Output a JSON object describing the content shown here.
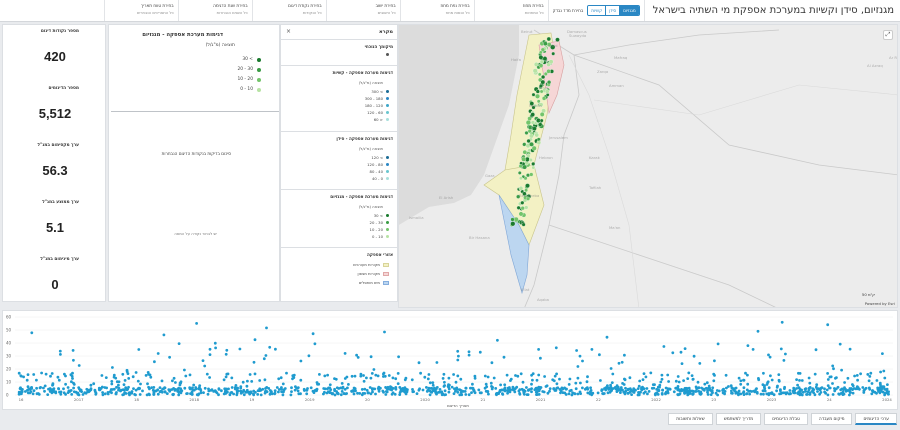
{
  "header": {
    "title": "מגנזיום, סידן וקשיות במערכת אספקת מי השתיה בישראל",
    "metric_label": "בחירת מדד נבדק",
    "metric_options": [
      "מגנזיום",
      "סידן",
      "קשיות"
    ],
    "metric_selected": "מגנזיום",
    "filters": [
      {
        "title": "בחירת מחוז",
        "sub": "כל המחוזות"
      },
      {
        "title": "בחירת נפת מחוז",
        "sub": "כל הנפות מחוז"
      },
      {
        "title": "בחירת ישוב",
        "sub": "כל הישובים"
      },
      {
        "title": "בחירת נקודת דיגום",
        "sub": "כל הנקודות"
      },
      {
        "title": "בחירת שנת הדגימה",
        "sub": "כל השנים הנבחרות"
      },
      {
        "title": "בחירת טווח תאריך",
        "sub": "כל התאריכים הנבחרים"
      }
    ]
  },
  "kpis": [
    {
      "label": "מספר נקודות דיגום",
      "value": "420"
    },
    {
      "label": "מספר הדיגומים",
      "value": "5,512"
    },
    {
      "label": "ערך מקסימום במג\"ל",
      "value": "56.3"
    },
    {
      "label": "ערך ממוצע במג\"ל",
      "value": "5.1"
    },
    {
      "label": "ערך מינימום במג\"ל",
      "value": "0"
    }
  ],
  "mid_panel": {
    "title": "דגימות מערכת אספקה - מגנזיום",
    "unit": "תוצאה (מ\"ג/ל)",
    "legend": [
      {
        "label": "30 <",
        "color": "#1a7a2e"
      },
      {
        "label": "20 - 30",
        "color": "#3a9c45"
      },
      {
        "label": "10 - 20",
        "color": "#73c46a"
      },
      {
        "label": "0 - 10",
        "color": "#b7e3a4"
      }
    ],
    "subtitle": "סיכום בדיקות בנקודות הדיגום הנבחרות",
    "empty_text": "יש לבחור נקודה על המפה"
  },
  "legend_panel": {
    "title": "מקרא",
    "sections": [
      {
        "title": "מיקומך הנוכחי",
        "unit": "",
        "items": [
          {
            "label": "",
            "color": "#555",
            "shape": "dot"
          }
        ]
      },
      {
        "title": "דגימות מערכת אספקה - קשיות",
        "unit": "תוצאה (מ\"ג/ל)",
        "items": [
          {
            "label": "300 <",
            "color": "#1c6c95",
            "shape": "dot"
          },
          {
            "label": "300 - 180",
            "color": "#2a87c4",
            "shape": "dot"
          },
          {
            "label": "180 - 120",
            "color": "#3ea6c9",
            "shape": "dot"
          },
          {
            "label": "120 - 60",
            "color": "#6ac6cf",
            "shape": "dot"
          },
          {
            "label": "60 >",
            "color": "#a8e0dc",
            "shape": "dot"
          }
        ]
      },
      {
        "title": "דגימות מערכת אספקה - סידן",
        "unit": "תוצאה (מ\"ג/ל)",
        "items": [
          {
            "label": "120 <",
            "color": "#1c6c95",
            "shape": "dot"
          },
          {
            "label": "120 - 80",
            "color": "#2a87c4",
            "shape": "dot"
          },
          {
            "label": "80 - 40",
            "color": "#6ac6cf",
            "shape": "dot"
          },
          {
            "label": "40 - 0",
            "color": "#a8e0dc",
            "shape": "dot"
          }
        ]
      },
      {
        "title": "דגימות מערכת אספקה - מגנזיום",
        "unit": "תוצאה (מ\"ג/ל)",
        "items": [
          {
            "label": "30 <",
            "color": "#1a7a2e",
            "shape": "dot"
          },
          {
            "label": "20 - 30",
            "color": "#3a9c45",
            "shape": "dot"
          },
          {
            "label": "10 - 20",
            "color": "#73c46a",
            "shape": "dot"
          },
          {
            "label": "0 - 10",
            "color": "#b7e3a4",
            "shape": "dot"
          }
        ]
      },
      {
        "title": "אזורי אספקה",
        "unit": "",
        "items": [
          {
            "label": "מקורות מעורבים",
            "color": "#f3f1c4",
            "shape": "sq"
          },
          {
            "label": "מקורות מצפון",
            "color": "#f6d6d6",
            "shape": "sq"
          },
          {
            "label": "מים מותפלים",
            "color": "#bcd6f0",
            "shape": "sq"
          }
        ]
      }
    ]
  },
  "map": {
    "expand_icon": "expand-icon",
    "scale": "50 ק\"מ",
    "powered": "Powered by Esri",
    "labels": [
      "Damascus",
      "Amman",
      "Al Azraq",
      "Ar Ra",
      "Zarqa",
      "Irbid",
      "Beirut",
      "Haifa",
      "Jenin",
      "Nablus",
      "Jerusalem",
      "Hebron",
      "Gaza",
      "Beersheba",
      "Eilat",
      "Aqaba",
      "Suwayda",
      "Mafraq",
      "Karak",
      "Tafilah",
      "Ma'an",
      "El Arish",
      "Bir Hasana",
      "Ismailia"
    ]
  },
  "scatter": {
    "xlabel": "תאריך הדיגום",
    "y_ticks": [
      "0",
      "10",
      "20",
      "30",
      "40",
      "50",
      "60"
    ],
    "x_ticks": [
      "16",
      "2017",
      "18",
      "2018",
      "19",
      "2019",
      "20",
      "2020",
      "21",
      "2021",
      "22",
      "2022",
      "23",
      "2023",
      "24",
      "2024"
    ],
    "color": "#1f9bcf"
  },
  "tabs": [
    "ערכי הדיגומים",
    "מיקום מעבדה",
    "טבלת הדיגומים",
    "מדריך למשתמש",
    "שאלות ותשובות"
  ],
  "active_tab": "ערכי הדיגומים"
}
